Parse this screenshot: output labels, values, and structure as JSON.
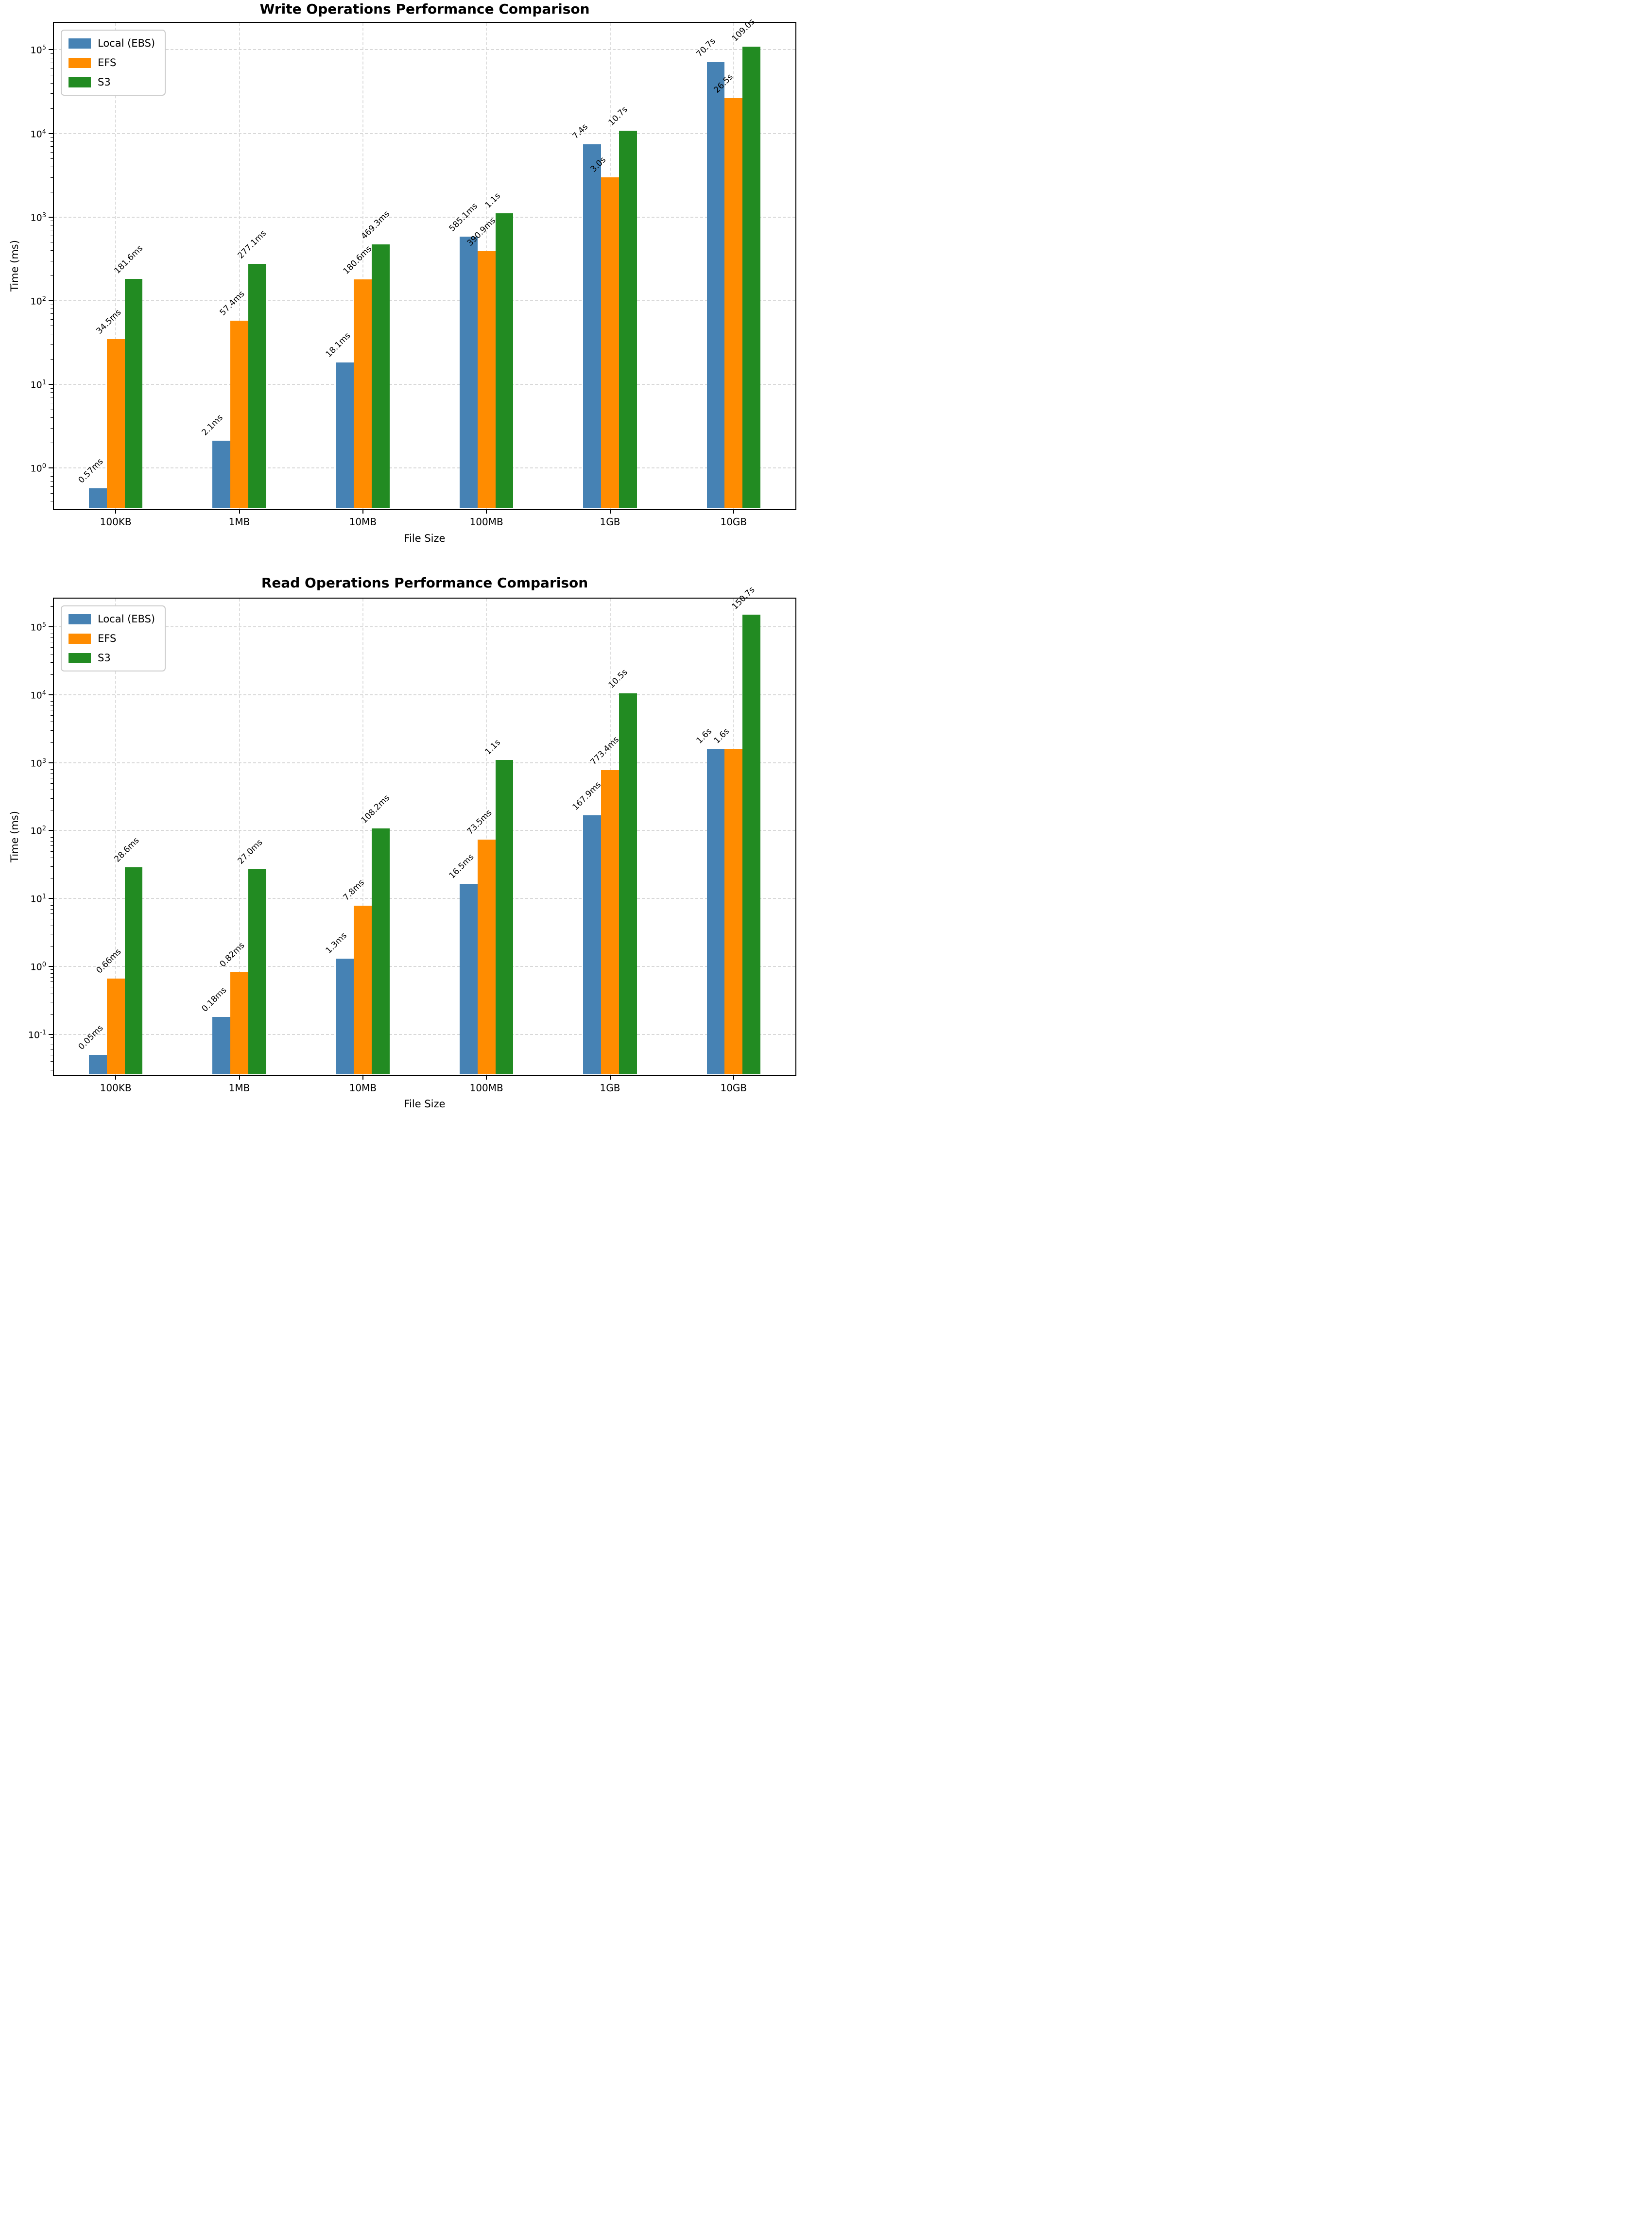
{
  "figure": {
    "background": "#ffffff",
    "grid_color": "#d8d8d8",
    "axis_color": "#000000"
  },
  "chart_data": [
    {
      "type": "bar",
      "title": "Write Operations Performance Comparison",
      "xlabel": "File Size",
      "ylabel": "Time (ms)",
      "yscale": "log",
      "ylim": [
        0.32,
        210000
      ],
      "ytick_exponents": [
        0,
        1,
        2,
        3,
        4,
        5
      ],
      "grid": true,
      "legend_position": "upper left",
      "categories": [
        "100KB",
        "1MB",
        "10MB",
        "100MB",
        "1GB",
        "10GB"
      ],
      "series": [
        {
          "name": "Local (EBS)",
          "color": "#4682B4",
          "values": [
            0.57,
            2.1,
            18.1,
            585.1,
            7400,
            70700
          ],
          "labels": [
            "0.57ms",
            "2.1ms",
            "18.1ms",
            "585.1ms",
            "7.4s",
            "70.7s"
          ]
        },
        {
          "name": "EFS",
          "color": "#FF8C00",
          "values": [
            34.5,
            57.4,
            180.6,
            390.9,
            3000,
            26500
          ],
          "labels": [
            "34.5ms",
            "57.4ms",
            "180.6ms",
            "390.9ms",
            "3.0s",
            "26.5s"
          ]
        },
        {
          "name": "S3",
          "color": "#228B22",
          "values": [
            181.6,
            277.1,
            469.3,
            1100,
            10700,
            109000
          ],
          "labels": [
            "181.6ms",
            "277.1ms",
            "469.3ms",
            "1.1s",
            "10.7s",
            "109.0s"
          ]
        }
      ]
    },
    {
      "type": "bar",
      "title": "Read Operations Performance Comparison",
      "xlabel": "File Size",
      "ylabel": "Time (ms)",
      "yscale": "log",
      "ylim": [
        0.025,
        260000
      ],
      "ytick_exponents": [
        -1,
        0,
        1,
        2,
        3,
        4,
        5
      ],
      "grid": true,
      "legend_position": "upper left",
      "categories": [
        "100KB",
        "1MB",
        "10MB",
        "100MB",
        "1GB",
        "10GB"
      ],
      "series": [
        {
          "name": "Local (EBS)",
          "color": "#4682B4",
          "values": [
            0.05,
            0.18,
            1.3,
            16.5,
            167.9,
            1600
          ],
          "labels": [
            "0.05ms",
            "0.18ms",
            "1.3ms",
            "16.5ms",
            "167.9ms",
            "1.6s"
          ]
        },
        {
          "name": "EFS",
          "color": "#FF8C00",
          "values": [
            0.66,
            0.82,
            7.8,
            73.5,
            773.4,
            1600
          ],
          "labels": [
            "0.66ms",
            "0.82ms",
            "7.8ms",
            "73.5ms",
            "773.4ms",
            "1.6s"
          ]
        },
        {
          "name": "S3",
          "color": "#228B22",
          "values": [
            28.6,
            27.0,
            108.2,
            1100,
            10500,
            150700
          ],
          "labels": [
            "28.6ms",
            "27.0ms",
            "108.2ms",
            "1.1s",
            "10.5s",
            "150.7s"
          ]
        }
      ]
    }
  ]
}
